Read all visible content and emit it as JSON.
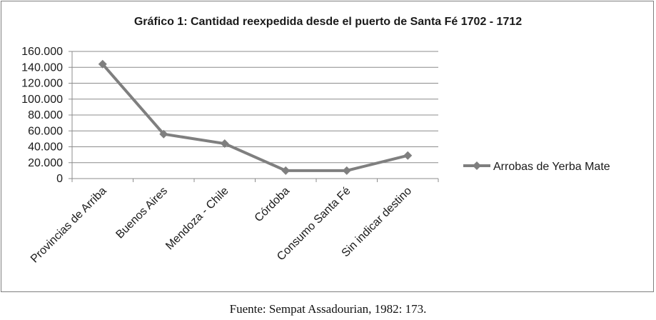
{
  "chart_data": {
    "type": "line",
    "title": "Gráfico 1: Cantidad reexpedida desde el puerto de Santa Fé 1702 - 1712",
    "categories": [
      "Provincias de Arriba",
      "Buenos Aires",
      "Mendoza - Chile",
      "Córdoba",
      "Consumo Santa Fé",
      "Sin indicar destino"
    ],
    "series": [
      {
        "name": "Arrobas de Yerba Mate",
        "values": [
          144000,
          56000,
          44000,
          10000,
          10000,
          29000
        ]
      }
    ],
    "yticks": [
      "0",
      "20.000",
      "40.000",
      "60.000",
      "80.000",
      "100.000",
      "120.000",
      "140.000",
      "160.000"
    ],
    "ylim": [
      0,
      160000
    ],
    "grid": true,
    "legend_position": "right",
    "line_color": "#7f7f7f",
    "grid_color": "#8c8c8c"
  },
  "caption": "Fuente: Sempat Assadourian, 1982: 173."
}
